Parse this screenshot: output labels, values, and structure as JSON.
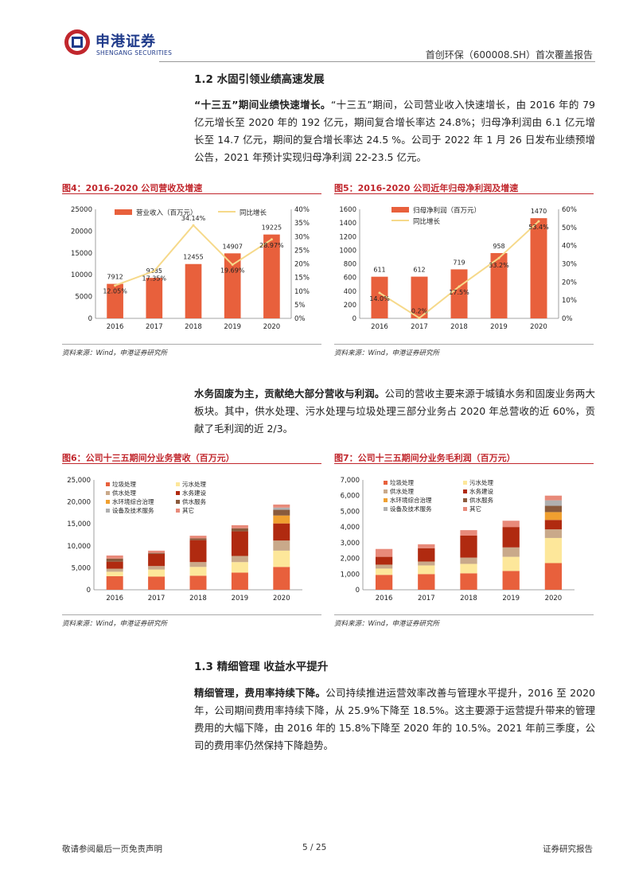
{
  "header": {
    "logo_cn": "申港证券",
    "logo_en": "SHENGANG SECURITIES",
    "title": "首创环保（600008.SH）首次覆盖报告"
  },
  "section1": {
    "title": "1.2 水固引领业绩高速发展",
    "para_bold": "“十三五”期间业绩快速增长。",
    "para_text": "“十三五”期间，公司营业收入快速增长，由 2016 年的 79 亿元增长至 2020 年的 192 亿元，期间复合增长率达 24.8%；归母净利润由 6.1 亿元增长至 14.7 亿元，期间的复合增长率达 24.5 %。公司于 2022 年 1 月 26 日发布业绩预增公告，2021 年预计实现归母净利润 22-23.5 亿元。"
  },
  "fig4": {
    "title": "图4：2016-2020 公司营收及增速",
    "source": "资料来源：Wind，申港证券研究所"
  },
  "fig5": {
    "title": "图5：2016-2020 公司近年归母净利润及增速",
    "source": "资料来源：Wind，申港证券研究所"
  },
  "para2": {
    "bold": "水务固废为主，贡献绝大部分营收与利润。",
    "text": "公司的营收主要来源于城镇水务和固废业务两大板块。其中，供水处理、污水处理与垃圾处理三部分业务占 2020 年总营收的近 60%，贡献了毛利润的近 2/3。"
  },
  "fig6": {
    "title": "图6：公司十三五期间分业务营收（百万元）",
    "source": "资料来源：Wind，申港证券研究所"
  },
  "fig7": {
    "title": "图7：公司十三五期间分业务毛利润（百万元）",
    "source": "资料来源：Wind，申港证券研究所"
  },
  "section2": {
    "title": "1.3 精细管理 收益水平提升",
    "para_bold": "精细管理，费用率持续下降。",
    "para_text": "公司持续推进运营效率改善与管理水平提升，2016 至 2020 年，公司期间费用率持续下降，从 25.9%下降至 18.5%。这主要源于运营提升带来的管理费用的大幅下降，由 2016 年的 15.8%下降至 2020 年的 10.5%。2021 年前三季度，公司的费用率仍然保持下降趋势。"
  },
  "footer": {
    "left": "敬请参阅最后一页免责声明",
    "page": "5 / 25",
    "right": "证券研究报告"
  },
  "colors": {
    "bar": "#e8603c",
    "line": "#f6d98a",
    "brand": "#1f3a8a",
    "fig_title": "#c1272d",
    "segments": [
      "#e8603c",
      "#fde79a",
      "#c9a98a",
      "#b02a10",
      "#f0a030",
      "#8a5a3c",
      "#b0b0b0",
      "#e88a7a"
    ]
  },
  "chart_data": [
    {
      "id": "fig4",
      "type": "bar",
      "categories": [
        "2016",
        "2017",
        "2018",
        "2019",
        "2020"
      ],
      "series": [
        {
          "name": "营业收入（百万元）",
          "values": [
            7912,
            9285,
            12455,
            14907,
            19225
          ],
          "axis": "left",
          "kind": "bar"
        },
        {
          "name": "同比增长",
          "values": [
            12.05,
            17.35,
            34.14,
            19.69,
            28.97
          ],
          "axis": "right",
          "kind": "line"
        }
      ],
      "value_labels": [
        "7912",
        "9285",
        "12455",
        "14907",
        "19225"
      ],
      "line_labels": [
        "12.05%",
        "17.35%",
        "34.14%",
        "19.69%",
        "28.97%"
      ],
      "yleft_ticks": [
        "0",
        "5000",
        "10000",
        "15000",
        "20000",
        "25000"
      ],
      "yright_ticks": [
        "0%",
        "5%",
        "10%",
        "15%",
        "20%",
        "25%",
        "30%",
        "35%",
        "40%"
      ],
      "ylim_left": [
        0,
        25000
      ],
      "ylim_right": [
        0,
        40
      ],
      "legend": "top"
    },
    {
      "id": "fig5",
      "type": "bar",
      "categories": [
        "2016",
        "2017",
        "2018",
        "2019",
        "2020"
      ],
      "series": [
        {
          "name": "归母净利润（百万元）",
          "values": [
            611,
            612,
            719,
            958,
            1470
          ],
          "axis": "left",
          "kind": "bar"
        },
        {
          "name": "同比增长",
          "values": [
            14.0,
            0.2,
            17.5,
            33.2,
            53.4
          ],
          "axis": "right",
          "kind": "line"
        }
      ],
      "value_labels": [
        "611",
        "612",
        "719",
        "958",
        "1470"
      ],
      "line_labels": [
        "14.0%",
        "0.2%",
        "17.5%",
        "33.2%",
        "53.4%"
      ],
      "yleft_ticks": [
        "0",
        "200",
        "400",
        "600",
        "800",
        "1000",
        "1200",
        "1400",
        "1600"
      ],
      "yright_ticks": [
        "0%",
        "10%",
        "20%",
        "30%",
        "40%",
        "50%",
        "60%"
      ],
      "ylim_left": [
        0,
        1600
      ],
      "ylim_right": [
        0,
        60
      ],
      "legend": "top-left"
    },
    {
      "id": "fig6",
      "type": "bar",
      "stacked": true,
      "categories": [
        "2016",
        "2017",
        "2018",
        "2019",
        "2020"
      ],
      "series": [
        {
          "name": "垃圾处理",
          "values": [
            3100,
            3000,
            3200,
            3900,
            5200
          ]
        },
        {
          "name": "污水处理",
          "values": [
            1000,
            1600,
            2000,
            2400,
            3700
          ]
        },
        {
          "name": "供水处理",
          "values": [
            700,
            800,
            1100,
            1400,
            2300
          ]
        },
        {
          "name": "水务建设",
          "values": [
            1600,
            2800,
            5000,
            5600,
            3900
          ]
        },
        {
          "name": "水环境综合治理",
          "values": [
            0,
            0,
            0,
            0,
            1800
          ]
        },
        {
          "name": "供水服务",
          "values": [
            700,
            200,
            400,
            700,
            1300
          ]
        },
        {
          "name": "设备及技术服务",
          "values": [
            0,
            0,
            0,
            0,
            500
          ]
        },
        {
          "name": "其它",
          "values": [
            700,
            500,
            600,
            700,
            700
          ]
        }
      ],
      "yleft_ticks": [
        "0",
        "5,000",
        "10,000",
        "15,000",
        "20,000",
        "25,000"
      ],
      "ylim": [
        0,
        25000
      ],
      "legend": "top-left"
    },
    {
      "id": "fig7",
      "type": "bar",
      "stacked": true,
      "categories": [
        "2016",
        "2017",
        "2018",
        "2019",
        "2020"
      ],
      "series": [
        {
          "name": "垃圾处理",
          "values": [
            950,
            1000,
            1050,
            1200,
            1700
          ]
        },
        {
          "name": "污水处理",
          "values": [
            400,
            550,
            600,
            900,
            1600
          ]
        },
        {
          "name": "供水处理",
          "values": [
            250,
            250,
            400,
            600,
            550
          ]
        },
        {
          "name": "水务建设",
          "values": [
            500,
            850,
            1400,
            1300,
            600
          ]
        },
        {
          "name": "水环境综合治理",
          "values": [
            0,
            0,
            0,
            0,
            500
          ]
        },
        {
          "name": "供水服务",
          "values": [
            0,
            0,
            0,
            0,
            400
          ]
        },
        {
          "name": "设备及技术服务",
          "values": [
            0,
            0,
            0,
            0,
            350
          ]
        },
        {
          "name": "其它",
          "values": [
            500,
            250,
            350,
            400,
            300
          ]
        }
      ],
      "yleft_ticks": [
        "0",
        "1,000",
        "2,000",
        "3,000",
        "4,000",
        "5,000",
        "6,000",
        "7,000"
      ],
      "ylim": [
        0,
        7000
      ],
      "legend": "top-left"
    }
  ]
}
